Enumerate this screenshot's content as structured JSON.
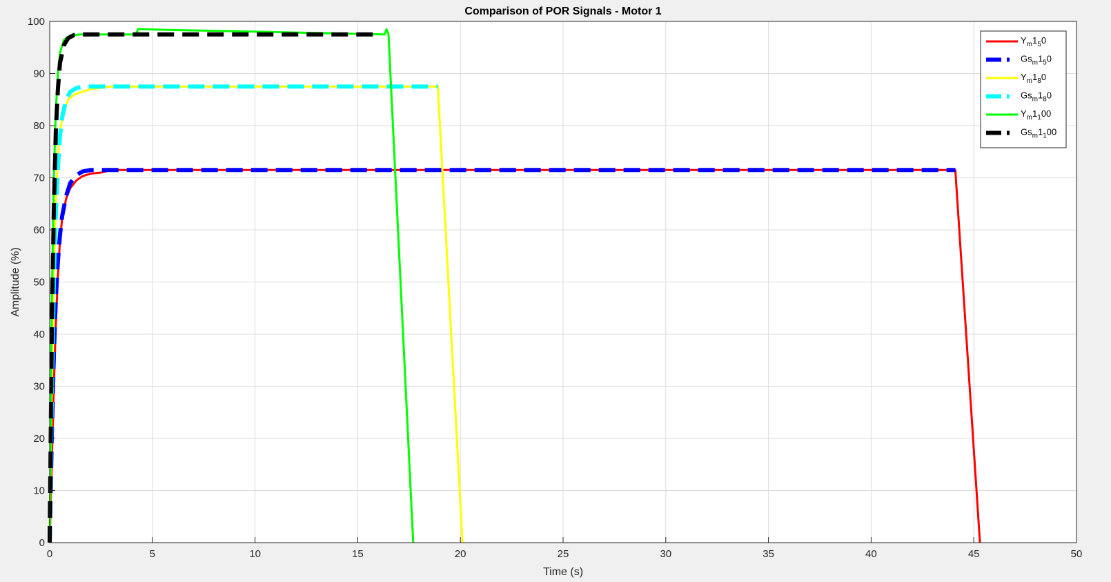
{
  "chart_data": {
    "type": "line",
    "title": "Comparison of POR Signals - Motor 1",
    "xlabel": "Time (s)",
    "ylabel": "Amplitude (%)",
    "xlim": [
      0,
      50
    ],
    "ylim": [
      0,
      100
    ],
    "xticks": [
      0,
      5,
      10,
      15,
      20,
      25,
      30,
      35,
      40,
      45,
      50
    ],
    "yticks": [
      0,
      10,
      20,
      30,
      40,
      50,
      60,
      70,
      80,
      90,
      100
    ],
    "grid": true,
    "legend_position": "top-right",
    "series": [
      {
        "name": "Ym150",
        "legend_base": "Y",
        "legend_sub1": "m",
        "legend_mid": "1",
        "legend_sub2": "5",
        "legend_tail": "0",
        "color": "#ff0000",
        "style": "solid",
        "x": [
          0,
          0.1,
          0.2,
          0.3,
          0.4,
          0.5,
          0.6,
          0.8,
          1.0,
          1.3,
          1.6,
          2.0,
          2.5,
          3.0,
          44.1,
          45.3
        ],
        "y": [
          0,
          15,
          30,
          42,
          51,
          58,
          62,
          66,
          68,
          69.5,
          70.3,
          70.8,
          71,
          71.5,
          71.5,
          0
        ]
      },
      {
        "name": "Gsm150",
        "legend_base": "Gs",
        "legend_sub1": "m",
        "legend_mid": "1",
        "legend_sub2": "5",
        "legend_tail": "0",
        "color": "#0000ff",
        "style": "dashed-thick",
        "x": [
          0,
          0.1,
          0.2,
          0.3,
          0.4,
          0.5,
          0.6,
          0.8,
          1.0,
          1.3,
          1.6,
          2.0,
          2.5,
          44.1
        ],
        "y": [
          0,
          20,
          36,
          47,
          54,
          59,
          62.5,
          66.5,
          69,
          70.5,
          71.2,
          71.5,
          71.5,
          71.5
        ]
      },
      {
        "name": "Ym180",
        "legend_base": "Y",
        "legend_sub1": "m",
        "legend_mid": "1",
        "legend_sub2": "8",
        "legend_tail": "0",
        "color": "#ffff00",
        "style": "solid",
        "x": [
          0,
          0.1,
          0.2,
          0.3,
          0.4,
          0.5,
          0.7,
          0.9,
          1.2,
          1.6,
          2.0,
          3.0,
          18.9,
          20.1
        ],
        "y": [
          0,
          30,
          52,
          66,
          74,
          79,
          83,
          85,
          86,
          86.5,
          87,
          87.5,
          87.5,
          0
        ]
      },
      {
        "name": "Gsm180",
        "legend_base": "Gs",
        "legend_sub1": "m",
        "legend_mid": "1",
        "legend_sub2": "8",
        "legend_tail": "0",
        "color": "#00ffff",
        "style": "dashed-thick",
        "x": [
          0,
          0.1,
          0.2,
          0.3,
          0.4,
          0.5,
          0.6,
          0.8,
          1.0,
          1.3,
          1.6,
          2.0,
          18.9
        ],
        "y": [
          0,
          28,
          50,
          63,
          72,
          78,
          81.5,
          85,
          86.5,
          87.2,
          87.5,
          87.5,
          87.5
        ]
      },
      {
        "name": "Ym1100",
        "legend_base": "Y",
        "legend_sub1": "m",
        "legend_mid": "1",
        "legend_sub2": "1",
        "legend_tail": "00",
        "color": "#00ff00",
        "style": "solid",
        "x": [
          0,
          0.1,
          0.2,
          0.3,
          0.4,
          0.5,
          0.7,
          1.0,
          1.5,
          2.0,
          4.2,
          4.3,
          16.3,
          16.4,
          16.5,
          17.7
        ],
        "y": [
          0,
          45,
          70,
          83,
          90,
          94,
          96.5,
          97.3,
          97.5,
          97.5,
          97.5,
          98.5,
          97.5,
          98.5,
          97.5,
          0
        ]
      },
      {
        "name": "Gsm1100",
        "legend_base": "Gs",
        "legend_sub1": "m",
        "legend_mid": "1",
        "legend_sub2": "1",
        "legend_tail": "00",
        "color": "#000000",
        "style": "dashed-thick",
        "x": [
          0,
          0.1,
          0.2,
          0.3,
          0.4,
          0.5,
          0.7,
          0.9,
          1.2,
          1.6,
          2.0,
          16.0
        ],
        "y": [
          0,
          40,
          64,
          79,
          87,
          92,
          95.5,
          96.8,
          97.4,
          97.5,
          97.5,
          97.5
        ]
      }
    ]
  }
}
